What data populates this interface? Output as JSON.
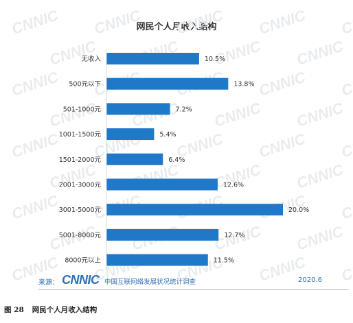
{
  "chart_data": {
    "type": "bar",
    "orientation": "horizontal",
    "title": "网民个人月收入结构",
    "categories": [
      "无收入",
      "500元以下",
      "501-1000元",
      "1001-1500元",
      "1501-2000元",
      "2001-3000元",
      "3001-5000元",
      "5001-8000元",
      "8000元以上"
    ],
    "values": [
      10.5,
      13.8,
      7.2,
      5.4,
      6.4,
      12.6,
      20.0,
      12.7,
      11.5
    ],
    "value_labels": [
      "10.5%",
      "13.8%",
      "7.2%",
      "5.4%",
      "6.4%",
      "12.6%",
      "20.0%",
      "12.7%",
      "11.5%"
    ],
    "xlim": [
      0,
      20
    ],
    "bar_color": "#1f78c8",
    "grid": false
  },
  "footer": {
    "source_label": "来源：",
    "logo_text": "CNNIC",
    "org_text": "中国互联网络发展状况统计调查",
    "date": "2020.6"
  },
  "watermark_text": "CNNIC",
  "caption": {
    "figure_no": "图 28",
    "text": "网民个人月收入结构"
  }
}
